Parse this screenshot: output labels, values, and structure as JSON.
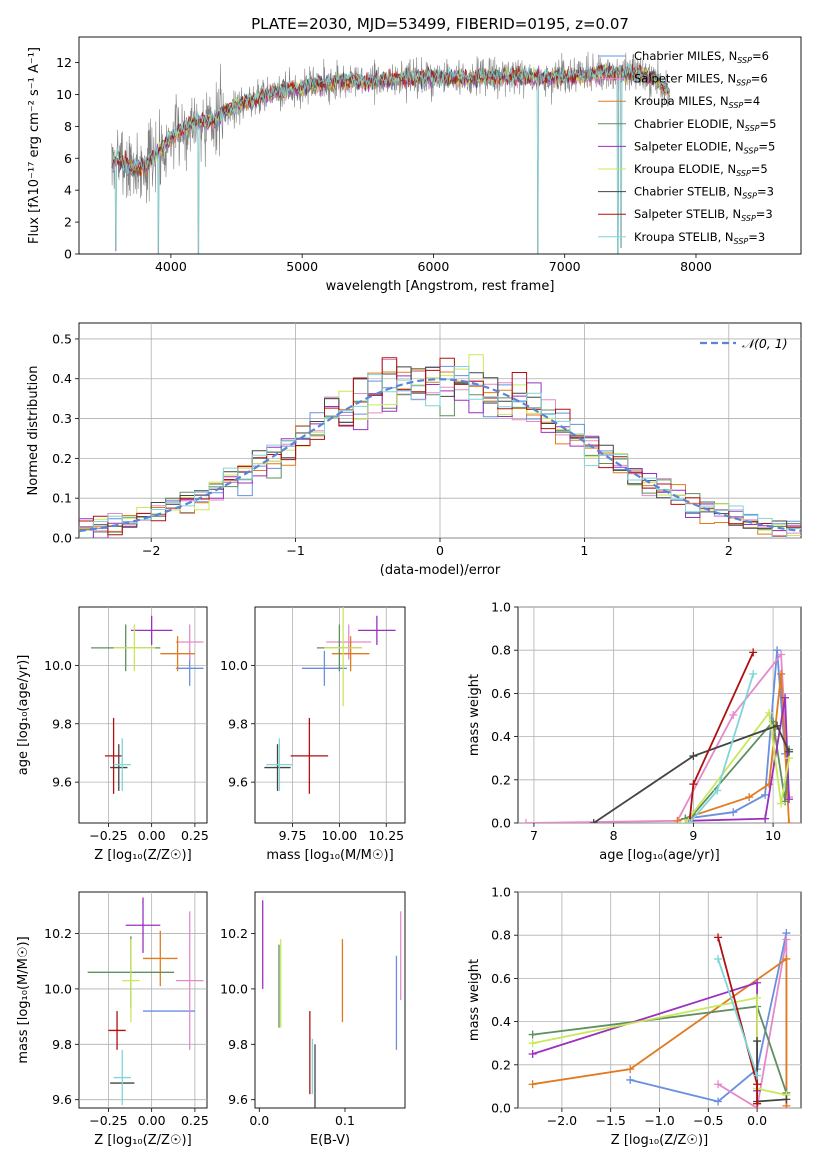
{
  "figure": {
    "title": "PLATE=2030, MJD=53499, FIBERID=0195, z=0.07"
  },
  "models": [
    {
      "name": "Chabrier MILES",
      "nssp": "6",
      "color": "#6a8fdf"
    },
    {
      "name": "Salpeter MILES",
      "nssp": "6",
      "color": "#e58ac9"
    },
    {
      "name": "Kroupa MILES",
      "nssp": "4",
      "color": "#e07b20"
    },
    {
      "name": "Chabrier ELODIE",
      "nssp": "5",
      "color": "#5f8f5f"
    },
    {
      "name": "Salpeter ELODIE",
      "nssp": "5",
      "color": "#9b30c0"
    },
    {
      "name": "Kroupa ELODIE",
      "nssp": "5",
      "color": "#c9e85a"
    },
    {
      "name": "Chabrier STELIB",
      "nssp": "3",
      "color": "#444444"
    },
    {
      "name": "Salpeter STELIB",
      "nssp": "3",
      "color": "#b01010"
    },
    {
      "name": "Kroupa STELIB",
      "nssp": "3",
      "color": "#7fd6d8"
    }
  ],
  "chart_data": [
    {
      "id": "spectrum",
      "type": "line",
      "xlabel": "wavelength [Angstrom, rest frame]",
      "ylabel": "Flux [fλ10⁻¹⁷ erg cm⁻² s⁻¹ A⁻¹]",
      "xlim": [
        3300,
        8800
      ],
      "ylim": [
        0,
        13.6
      ],
      "xticks": [
        4000,
        5000,
        6000,
        7000,
        8000
      ],
      "yticks": [
        0,
        2,
        4,
        6,
        8,
        10,
        12
      ],
      "grid": false,
      "legend": "right",
      "data_color": "#808080",
      "continuum": {
        "x": [
          3550,
          3600,
          3700,
          3800,
          3900,
          4000,
          4100,
          4200,
          4300,
          4400,
          4500,
          4700,
          4900,
          5100,
          5300,
          5500,
          5700,
          5900,
          6100,
          6300,
          6500,
          6700,
          6900,
          7100,
          7300,
          7500,
          7700,
          7800
        ],
        "y": [
          5.6,
          6.0,
          5.3,
          5.5,
          6.3,
          7.3,
          7.9,
          8.3,
          8.3,
          8.8,
          9.3,
          9.9,
          10.3,
          10.6,
          10.8,
          10.8,
          10.9,
          11.0,
          11.0,
          11.0,
          11.1,
          11.1,
          11.0,
          11.2,
          11.3,
          11.3,
          11.0,
          10.0
        ]
      },
      "spikes": [
        {
          "x": 3580,
          "y": 0.2
        },
        {
          "x": 3905,
          "y": 0.0
        },
        {
          "x": 4210,
          "y": 0.0
        },
        {
          "x": 6795,
          "y": 0.0
        },
        {
          "x": 7405,
          "y": 0.0
        },
        {
          "x": 7430,
          "y": 0.4
        }
      ]
    },
    {
      "id": "residuals",
      "type": "histogram",
      "xlabel": "(data-model)/error",
      "ylabel": "Normed distribution",
      "xlim": [
        -2.5,
        2.5
      ],
      "ylim": [
        0,
        0.54
      ],
      "xticks": [
        -2,
        -1,
        0,
        1,
        2
      ],
      "yticks": [
        0.0,
        0.1,
        0.2,
        0.3,
        0.4,
        0.5
      ],
      "grid": true,
      "legend": "top-right",
      "normal_label": "𝒩(0, 1)",
      "normal_color": "#5b84d6",
      "bin_width": 0.1
    },
    {
      "id": "age-vs-Z",
      "type": "errorbar",
      "xlabel": "Z [log₁₀(Z/Z☉)]",
      "ylabel": "age  [log₁₀(age/yr)]",
      "xlim": [
        -0.42,
        0.32
      ],
      "ylim": [
        9.46,
        10.2
      ],
      "xticks": [
        -0.25,
        0.0,
        0.25
      ],
      "xticklabels": [
        "−0.25",
        "0.00",
        "0.25"
      ],
      "yticks": [
        9.6,
        9.8,
        10.0
      ],
      "grid": true,
      "points": [
        {
          "model": 0,
          "x": 0.22,
          "xerr": 0.08,
          "y": 9.99,
          "yerr": 0.06
        },
        {
          "model": 1,
          "x": 0.22,
          "xerr": 0.08,
          "y": 10.08,
          "yerr": 0.06
        },
        {
          "model": 2,
          "x": 0.15,
          "xerr": 0.1,
          "y": 10.04,
          "yerr": 0.06
        },
        {
          "model": 3,
          "x": -0.15,
          "xerr": 0.2,
          "y": 10.06,
          "yerr": 0.08
        },
        {
          "model": 4,
          "x": 0.0,
          "xerr": 0.12,
          "y": 10.12,
          "yerr": 0.05
        },
        {
          "model": 5,
          "x": -0.1,
          "xerr": 0.12,
          "y": 10.06,
          "yerr": 0.08
        },
        {
          "model": 6,
          "x": -0.19,
          "xerr": 0.05,
          "y": 9.65,
          "yerr": 0.08
        },
        {
          "model": 7,
          "x": -0.22,
          "xerr": 0.05,
          "y": 9.69,
          "yerr": 0.13
        },
        {
          "model": 8,
          "x": -0.17,
          "xerr": 0.05,
          "y": 9.66,
          "yerr": 0.09
        }
      ]
    },
    {
      "id": "age-vs-mass",
      "type": "errorbar",
      "xlabel": "mass [log₁₀(M/M☉)]",
      "xlim": [
        9.55,
        10.35
      ],
      "ylim": [
        9.46,
        10.2
      ],
      "xticks": [
        9.75,
        10.0,
        10.25
      ],
      "xticklabels": [
        "9.75",
        "10.00",
        "10.25"
      ],
      "yticks": [
        9.6,
        9.8,
        10.0
      ],
      "grid": true,
      "points": [
        {
          "model": 0,
          "x": 9.92,
          "xerr": 0.12,
          "y": 9.99,
          "yerr": 0.06
        },
        {
          "model": 1,
          "x": 10.05,
          "xerr": 0.12,
          "y": 10.08,
          "yerr": 0.06
        },
        {
          "model": 2,
          "x": 10.06,
          "xerr": 0.1,
          "y": 10.04,
          "yerr": 0.06
        },
        {
          "model": 3,
          "x": 10.0,
          "xerr": 0.12,
          "y": 10.06,
          "yerr": 0.08
        },
        {
          "model": 4,
          "x": 10.2,
          "xerr": 0.1,
          "y": 10.12,
          "yerr": 0.05
        },
        {
          "model": 5,
          "x": 10.02,
          "xerr": 0.1,
          "y": 10.06,
          "yerr": 0.2
        },
        {
          "model": 6,
          "x": 9.67,
          "xerr": 0.07,
          "y": 9.65,
          "yerr": 0.08
        },
        {
          "model": 7,
          "x": 9.84,
          "xerr": 0.1,
          "y": 9.69,
          "yerr": 0.13
        },
        {
          "model": 8,
          "x": 9.68,
          "xerr": 0.07,
          "y": 9.66,
          "yerr": 0.09
        }
      ]
    },
    {
      "id": "weight-vs-age",
      "type": "line",
      "xlabel": "age  [log₁₀(age/yr)]",
      "ylabel": "mass weight",
      "xlim": [
        6.8,
        10.35
      ],
      "ylim": [
        0,
        1
      ],
      "xticks": [
        7,
        8,
        9,
        10
      ],
      "yticks": [
        0.0,
        0.2,
        0.4,
        0.6,
        0.8,
        1.0
      ],
      "grid": true,
      "series": [
        {
          "model": 0,
          "x": [
            8.9,
            9.5,
            9.9,
            10.05,
            10.15
          ],
          "y": [
            0.02,
            0.05,
            0.13,
            0.8,
            0.32
          ]
        },
        {
          "model": 1,
          "x": [
            6.9,
            8.8,
            9.5,
            10.1,
            10.2
          ],
          "y": [
            0.0,
            0.01,
            0.5,
            0.78,
            0.12
          ]
        },
        {
          "model": 2,
          "x": [
            8.8,
            9.7,
            9.95,
            10.1,
            10.2
          ],
          "y": [
            0.01,
            0.12,
            0.18,
            0.69,
            0.0
          ]
        },
        {
          "model": 3,
          "x": [
            8.9,
            9.0,
            10.0,
            10.15,
            10.2
          ],
          "y": [
            0.02,
            0.04,
            0.47,
            0.1,
            0.34
          ]
        },
        {
          "model": 4,
          "x": [
            8.95,
            9.9,
            10.15,
            10.2
          ],
          "y": [
            0.01,
            0.02,
            0.58,
            0.11
          ]
        },
        {
          "model": 5,
          "x": [
            8.9,
            9.95,
            10.1,
            10.2
          ],
          "y": [
            0.0,
            0.51,
            0.09,
            0.3
          ]
        },
        {
          "model": 6,
          "x": [
            7.75,
            9.0,
            10.05,
            10.2
          ],
          "y": [
            0.0,
            0.31,
            0.45,
            0.33
          ]
        },
        {
          "model": 7,
          "x": [
            8.95,
            9.0,
            9.75
          ],
          "y": [
            0.0,
            0.18,
            0.79
          ]
        },
        {
          "model": 8,
          "x": [
            8.95,
            9.3,
            9.75
          ],
          "y": [
            0.0,
            0.15,
            0.69
          ]
        }
      ]
    },
    {
      "id": "mass-vs-Z",
      "type": "errorbar",
      "xlabel": "Z [log₁₀(Z/Z☉)]",
      "ylabel": "mass [log₁₀(M/M☉)]",
      "xlim": [
        -0.42,
        0.32
      ],
      "ylim": [
        9.57,
        10.35
      ],
      "xticks": [
        -0.25,
        0.0,
        0.25
      ],
      "xticklabels": [
        "−0.25",
        "0.00",
        "0.25"
      ],
      "yticks": [
        9.6,
        9.8,
        10.0,
        10.2
      ],
      "grid": true,
      "points": [
        {
          "model": 0,
          "x": 0.1,
          "xerr": 0.15,
          "y": 9.92,
          "yerr": 0.0
        },
        {
          "model": 1,
          "x": 0.22,
          "xerr": 0.08,
          "y": 10.03,
          "yerr": 0.25
        },
        {
          "model": 2,
          "x": 0.05,
          "xerr": 0.1,
          "y": 10.11,
          "yerr": 0.1
        },
        {
          "model": 3,
          "x": -0.12,
          "xerr": 0.25,
          "y": 10.06,
          "yerr": 0.13
        },
        {
          "model": 4,
          "x": -0.05,
          "xerr": 0.1,
          "y": 10.23,
          "yerr": 0.1
        },
        {
          "model": 5,
          "x": -0.12,
          "xerr": 0.05,
          "y": 10.03,
          "yerr": 0.15
        },
        {
          "model": 6,
          "x": -0.17,
          "xerr": 0.07,
          "y": 9.66,
          "yerr": 0.0
        },
        {
          "model": 7,
          "x": -0.2,
          "xerr": 0.05,
          "y": 9.85,
          "yerr": 0.07
        },
        {
          "model": 8,
          "x": -0.17,
          "xerr": 0.05,
          "y": 9.68,
          "yerr": 0.1
        }
      ]
    },
    {
      "id": "mass-vs-EBV",
      "type": "errorbar",
      "xlabel": "E(B-V)",
      "xlim": [
        -0.005,
        0.17
      ],
      "ylim": [
        9.57,
        10.35
      ],
      "xticks": [
        0.0,
        0.1
      ],
      "xticklabels": [
        "0.0",
        "0.1"
      ],
      "yticks": [
        9.6,
        9.8,
        10.0,
        10.2
      ],
      "grid": false,
      "points": [
        {
          "model": 0,
          "x": 0.16,
          "xerr": 0,
          "y": 9.95,
          "yerr": 0.17
        },
        {
          "model": 1,
          "x": 0.165,
          "xerr": 0,
          "y": 10.12,
          "yerr": 0.16
        },
        {
          "model": 2,
          "x": 0.097,
          "xerr": 0,
          "y": 10.03,
          "yerr": 0.15
        },
        {
          "model": 3,
          "x": 0.023,
          "xerr": 0,
          "y": 10.01,
          "yerr": 0.15
        },
        {
          "model": 4,
          "x": 0.004,
          "xerr": 0,
          "y": 10.16,
          "yerr": 0.16
        },
        {
          "model": 5,
          "x": 0.025,
          "xerr": 0,
          "y": 10.02,
          "yerr": 0.16
        },
        {
          "model": 6,
          "x": 0.065,
          "xerr": 0,
          "y": 9.68,
          "yerr": 0.12
        },
        {
          "model": 7,
          "x": 0.059,
          "xerr": 0,
          "y": 9.77,
          "yerr": 0.15
        },
        {
          "model": 8,
          "x": 0.062,
          "xerr": 0,
          "y": 9.72,
          "yerr": 0.1
        }
      ]
    },
    {
      "id": "weight-vs-Z",
      "type": "line",
      "xlabel": "Z [log₁₀(Z/Z☉)]",
      "ylabel": "mass weight",
      "xlim": [
        -2.45,
        0.45
      ],
      "ylim": [
        0,
        1
      ],
      "xticks": [
        -2.0,
        -1.5,
        -1.0,
        -0.5,
        0.0
      ],
      "xticklabels": [
        "−2.0",
        "−1.5",
        "−1.0",
        "−0.5",
        "0.0"
      ],
      "yticks": [
        0.0,
        0.2,
        0.4,
        0.6,
        0.8,
        1.0
      ],
      "grid": true,
      "series": [
        {
          "model": 0,
          "x": [
            -1.3,
            -0.4,
            0.0,
            0.3
          ],
          "y": [
            0.13,
            0.03,
            0.18,
            0.81
          ]
        },
        {
          "model": 1,
          "x": [
            -0.4,
            0.0,
            0.3,
            0.3
          ],
          "y": [
            0.11,
            0.0,
            0.78,
            0.0
          ]
        },
        {
          "model": 2,
          "x": [
            -2.3,
            -1.3,
            0.3,
            0.3
          ],
          "y": [
            0.11,
            0.18,
            0.69,
            0.01
          ]
        },
        {
          "model": 3,
          "x": [
            -2.3,
            0.0,
            0.3
          ],
          "y": [
            0.34,
            0.47,
            0.07
          ]
        },
        {
          "model": 4,
          "x": [
            -2.3,
            0.0,
            0.0
          ],
          "y": [
            0.25,
            0.58,
            0.08
          ]
        },
        {
          "model": 5,
          "x": [
            -2.3,
            0.0,
            0.0,
            0.3
          ],
          "y": [
            0.3,
            0.51,
            0.09,
            0.06
          ]
        },
        {
          "model": 6,
          "x": [
            0.0,
            0.0,
            0.3
          ],
          "y": [
            0.31,
            0.03,
            0.04
          ]
        },
        {
          "model": 7,
          "x": [
            -0.4,
            0.0,
            0.0
          ],
          "y": [
            0.79,
            0.11,
            0.02
          ]
        },
        {
          "model": 8,
          "x": [
            -0.4,
            0.0
          ],
          "y": [
            0.69,
            0.15
          ]
        }
      ]
    }
  ]
}
